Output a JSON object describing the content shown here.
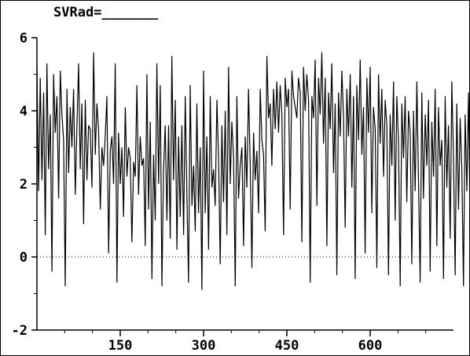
{
  "title": "SVRad=_______",
  "chart_data": {
    "type": "line",
    "title": "SVRad=_______",
    "xlabel": "",
    "ylabel": "",
    "xlim": [
      0,
      750
    ],
    "ylim": [
      -2,
      6
    ],
    "x_ticks": [
      150,
      300,
      450,
      600
    ],
    "y_ticks": [
      -2,
      0,
      2,
      4,
      6
    ],
    "reference_line": {
      "y": 0,
      "style": "dotted"
    },
    "grid": false,
    "legend": "none",
    "line_color": "#000000",
    "series": [
      {
        "x_start": 0,
        "x_step": 3,
        "values": [
          5.2,
          1.8,
          4.9,
          2.1,
          4.5,
          0.6,
          5.3,
          2.4,
          3.9,
          -0.4,
          5.0,
          3.4,
          4.4,
          1.6,
          5.1,
          3.9,
          3.2,
          -0.8,
          4.6,
          2.3,
          4.1,
          3.0,
          4.6,
          1.7,
          3.6,
          5.3,
          2.4,
          4.2,
          0.9,
          4.3,
          2.1,
          3.6,
          3.5,
          1.9,
          5.6,
          2.8,
          4.2,
          3.5,
          1.3,
          3.0,
          2.5,
          3.3,
          4.4,
          0.1,
          2.9,
          3.3,
          2.0,
          5.3,
          -0.7,
          3.4,
          2.0,
          3.0,
          1.1,
          4.1,
          2.2,
          3.0,
          2.7,
          0.4,
          2.6,
          2.2,
          4.7,
          1.7,
          3.3,
          2.5,
          2.7,
          0.3,
          5.0,
          1.3,
          3.7,
          -0.6,
          2.8,
          1.0,
          5.3,
          2.0,
          4.7,
          -0.8,
          2.4,
          3.6,
          1.0,
          3.6,
          0.5,
          5.5,
          2.1,
          4.3,
          0.2,
          3.3,
          1.1,
          3.6,
          0.6,
          4.4,
          1.7,
          -0.7,
          4.7,
          1.4,
          2.5,
          0.7,
          4.2,
          1.2,
          3.0,
          -0.9,
          5.1,
          1.2,
          3.3,
          0.2,
          4.4,
          1.9,
          2.4,
          1.4,
          4.3,
          2.7,
          -0.2,
          3.6,
          1.5,
          4.0,
          0.6,
          5.2,
          2.0,
          3.7,
          2.7,
          -0.8,
          4.4,
          1.6,
          2.5,
          3.0,
          0.3,
          3.3,
          1.9,
          4.6,
          2.5,
          -0.3,
          3.4,
          2.1,
          2.9,
          1.2,
          4.6,
          3.2,
          2.8,
          0.7,
          5.5,
          3.8,
          4.2,
          2.5,
          4.6,
          3.5,
          4.8,
          3.4,
          4.7,
          3.9,
          0.6,
          4.9,
          4.1,
          4.6,
          1.3,
          5.1,
          4.4,
          4.1,
          3.8,
          4.9,
          4.5,
          0.4,
          5.2,
          4.0,
          5.0,
          4.3,
          -0.7,
          4.4,
          3.8,
          5.4,
          1.4,
          4.9,
          3.9,
          5.6,
          3.1,
          4.9,
          0.3,
          4.5,
          3.5,
          5.3,
          2.3,
          4.2,
          -0.5,
          4.5,
          3.3,
          5.1,
          3.8,
          0.8,
          4.6,
          3.3,
          5.0,
          1.9,
          4.4,
          -0.6,
          4.7,
          3.2,
          5.4,
          2.8,
          4.1,
          0.1,
          4.9,
          3.4,
          5.2,
          1.2,
          4.1,
          3.5,
          -0.3,
          5.0,
          3.1,
          4.6,
          2.2,
          4.3,
          3.6,
          -0.5,
          3.9,
          2.5,
          4.8,
          1.0,
          4.4,
          3.2,
          -0.8,
          4.2,
          2.7,
          4.4,
          1.5,
          4.0,
          3.4,
          -0.2,
          4.0,
          1.8,
          4.8,
          2.1,
          -0.7,
          4.5,
          1.6,
          3.9,
          2.5,
          4.3,
          -0.4,
          3.7,
          2.2,
          4.6,
          0.3,
          4.1,
          2.5,
          3.2,
          -0.6,
          4.4,
          1.9,
          3.6,
          0.5,
          4.8,
          2.7,
          -0.5,
          4.2,
          1.3,
          3.8,
          2.4,
          -0.8,
          3.9,
          1.8,
          4.5,
          0.7,
          3.5,
          2.3,
          -0.3,
          4.2,
          2.0,
          3.4,
          1.2,
          4.7,
          -0.6,
          3.8,
          2.2,
          3.9,
          0.3,
          4.6,
          1.5,
          3.1,
          -0.2,
          3.6,
          2.8,
          4.1,
          0.8,
          3.3,
          2.4,
          4.7,
          1.9,
          3.9,
          2.9,
          4.3,
          2.6,
          5.1,
          3.4,
          4.8,
          2.6,
          5.4,
          3.7,
          4.3,
          3.0,
          5.0,
          3.2,
          4.6,
          2.4,
          5.3,
          4.0,
          3.6,
          4.8,
          2.8,
          4.4,
          3.8,
          5.2,
          2.9,
          4.7,
          1.8,
          5.0,
          4.2,
          3.9,
          5.5,
          3.6,
          4.6,
          3.0,
          5.7,
          3.4,
          4.9,
          2.1,
          5.4,
          4.3,
          3.8,
          5.6,
          4.6,
          4.1,
          5.3,
          1.9,
          4.7
        ]
      }
    ]
  }
}
